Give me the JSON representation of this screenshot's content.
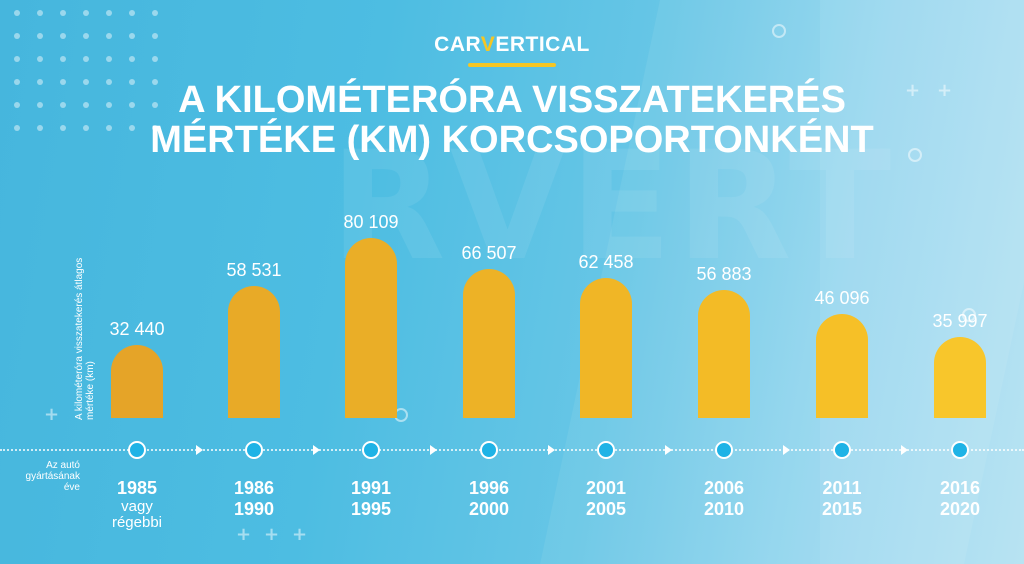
{
  "brand": {
    "logo_prefix": "CAR",
    "logo_accent": "V",
    "logo_suffix": "ERTICAL",
    "accent_color": "#f6c623"
  },
  "header": {
    "title_line1": "A KILOMÉTERÓRA VISSZATEKERÉS",
    "title_line2": "MÉRTÉKE (KM) KORCSOPORTONKÉNT"
  },
  "axes": {
    "y_label_line1": "A kilométeróra visszatekerés átlagos",
    "y_label_line2": "mértéke (km)",
    "x_label_line1": "Az autó",
    "x_label_line2": "gyártásának",
    "x_label_line3": "éve"
  },
  "bars": [
    {
      "value_label": "32 440",
      "year_top": "1985",
      "year_bottom": "vagy",
      "year_extra": "régebbi",
      "color": "#e5a428"
    },
    {
      "value_label": "58 531",
      "year_top": "1986",
      "year_bottom": "1990",
      "year_extra": "",
      "color": "#e8aa27"
    },
    {
      "value_label": "80 109",
      "year_top": "1991",
      "year_bottom": "1995",
      "year_extra": "",
      "color": "#eaae27"
    },
    {
      "value_label": "66 507",
      "year_top": "1996",
      "year_bottom": "2000",
      "year_extra": "",
      "color": "#edb226"
    },
    {
      "value_label": "62 458",
      "year_top": "2001",
      "year_bottom": "2005",
      "year_extra": "",
      "color": "#f0b626"
    },
    {
      "value_label": "56 883",
      "year_top": "2006",
      "year_bottom": "2010",
      "year_extra": "",
      "color": "#f3bb26"
    },
    {
      "value_label": "46 096",
      "year_top": "2011",
      "year_bottom": "2015",
      "year_extra": "",
      "color": "#f6c027"
    },
    {
      "value_label": "35 997",
      "year_top": "2016",
      "year_bottom": "2020",
      "year_extra": "",
      "color": "#f8c62b"
    }
  ],
  "chart_data": {
    "type": "bar",
    "title": "A KILOMÉTERÓRA VISSZATEKERÉS MÉRTÉKE (KM) KORCSOPORTONKÉNT",
    "xlabel": "Az autó gyártásának éve",
    "ylabel": "A kilométeróra visszatekerés átlagos mértéke (km)",
    "categories": [
      "1985 vagy régebbi",
      "1986–1990",
      "1991–1995",
      "1996–2000",
      "2001–2005",
      "2006–2010",
      "2011–2015",
      "2016–2020"
    ],
    "values": [
      32440,
      58531,
      80109,
      66507,
      62458,
      56883,
      46096,
      35997
    ],
    "data_labels": true,
    "grid": false,
    "legend": null
  }
}
